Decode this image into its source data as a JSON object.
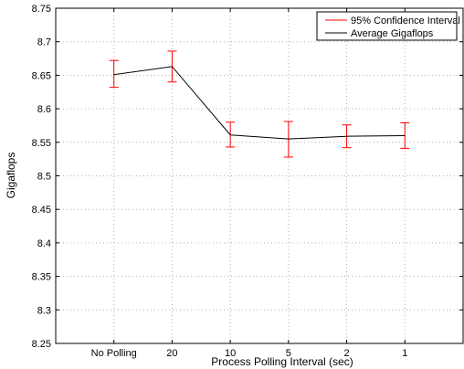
{
  "chart_data": {
    "type": "line",
    "title": "",
    "xlabel": "Process Polling Interval (sec)",
    "ylabel": "Gigaflops",
    "categories": [
      "No Polling",
      "20",
      "10",
      "5",
      "2",
      "1"
    ],
    "ylim": [
      8.25,
      8.75
    ],
    "yticks": [
      "8.25",
      "8.3",
      "8.35",
      "8.4",
      "8.45",
      "8.5",
      "8.55",
      "8.6",
      "8.65",
      "8.7",
      "8.75"
    ],
    "grid": true,
    "legend_position": "top-right",
    "series": [
      {
        "name": "Average Gigaflops",
        "color": "#000000",
        "values": [
          8.651,
          8.663,
          8.561,
          8.555,
          8.559,
          8.56
        ]
      },
      {
        "name": "95% Confidence Interval",
        "color": "#ff0000",
        "lower": [
          8.632,
          8.64,
          8.543,
          8.528,
          8.542,
          8.541
        ],
        "upper": [
          8.672,
          8.686,
          8.58,
          8.581,
          8.576,
          8.579
        ]
      }
    ],
    "legend": [
      "95% Confidence Interval",
      "Average Gigaflops"
    ]
  }
}
